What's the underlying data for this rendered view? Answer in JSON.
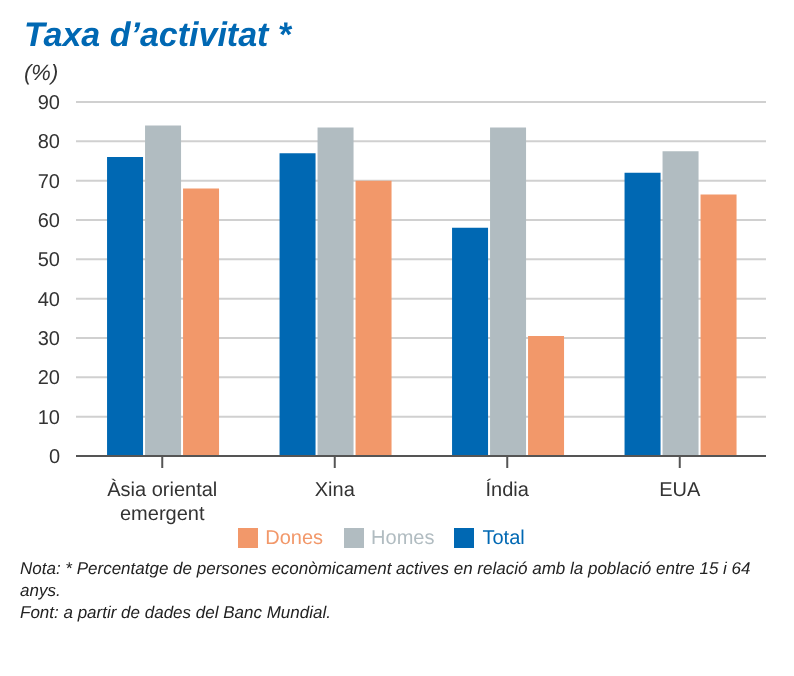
{
  "chart_data": {
    "type": "bar",
    "title": "Taxa d’activitat *",
    "ylabel": "(%)",
    "categories": [
      "Àsia oriental emergent",
      "Xina",
      "Índia",
      "EUA"
    ],
    "series": [
      {
        "name": "Total",
        "color": "#0068b3",
        "values": [
          76,
          77,
          58,
          72
        ]
      },
      {
        "name": "Homes",
        "color": "#b1bcc1",
        "values": [
          84,
          83.5,
          83.5,
          77.5
        ]
      },
      {
        "name": "Dones",
        "color": "#f2986a",
        "values": [
          68,
          70,
          30.5,
          66.5
        ]
      }
    ],
    "ylim": [
      0,
      90
    ],
    "yticks": [
      0,
      10,
      20,
      30,
      40,
      50,
      60,
      70,
      80,
      90
    ],
    "grid": "y",
    "legend": "bottom",
    "annotations": [
      "Nota: * Percentatge de persones econòmicament actives en relació amb la població entre 15 i 64 anys.",
      "Font: a partir de dades del Banc Mundial."
    ]
  }
}
